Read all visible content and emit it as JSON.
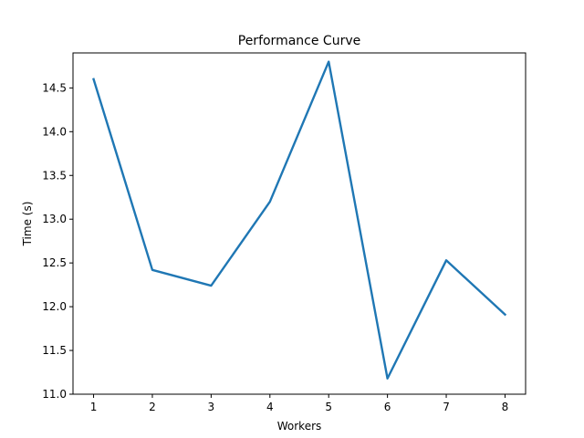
{
  "chart_data": {
    "type": "line",
    "title": "Performance Curve",
    "xlabel": "Workers",
    "ylabel": "Time (s)",
    "xlim": [
      0.65,
      8.35
    ],
    "ylim": [
      11.0,
      14.9
    ],
    "xticks": [
      1,
      2,
      3,
      4,
      5,
      6,
      7,
      8
    ],
    "yticks": [
      11.0,
      11.5,
      12.0,
      12.5,
      13.0,
      13.5,
      14.0,
      14.5
    ],
    "ytick_labels": [
      "11.0",
      "11.5",
      "12.0",
      "12.5",
      "13.0",
      "13.5",
      "14.0",
      "14.5"
    ],
    "grid": false,
    "series": [
      {
        "x": [
          1,
          2,
          3,
          4,
          5,
          6,
          7,
          8
        ],
        "y": [
          14.6,
          12.42,
          12.24,
          13.2,
          14.8,
          11.18,
          12.53,
          11.91
        ],
        "color": "#1f77b4"
      }
    ]
  }
}
